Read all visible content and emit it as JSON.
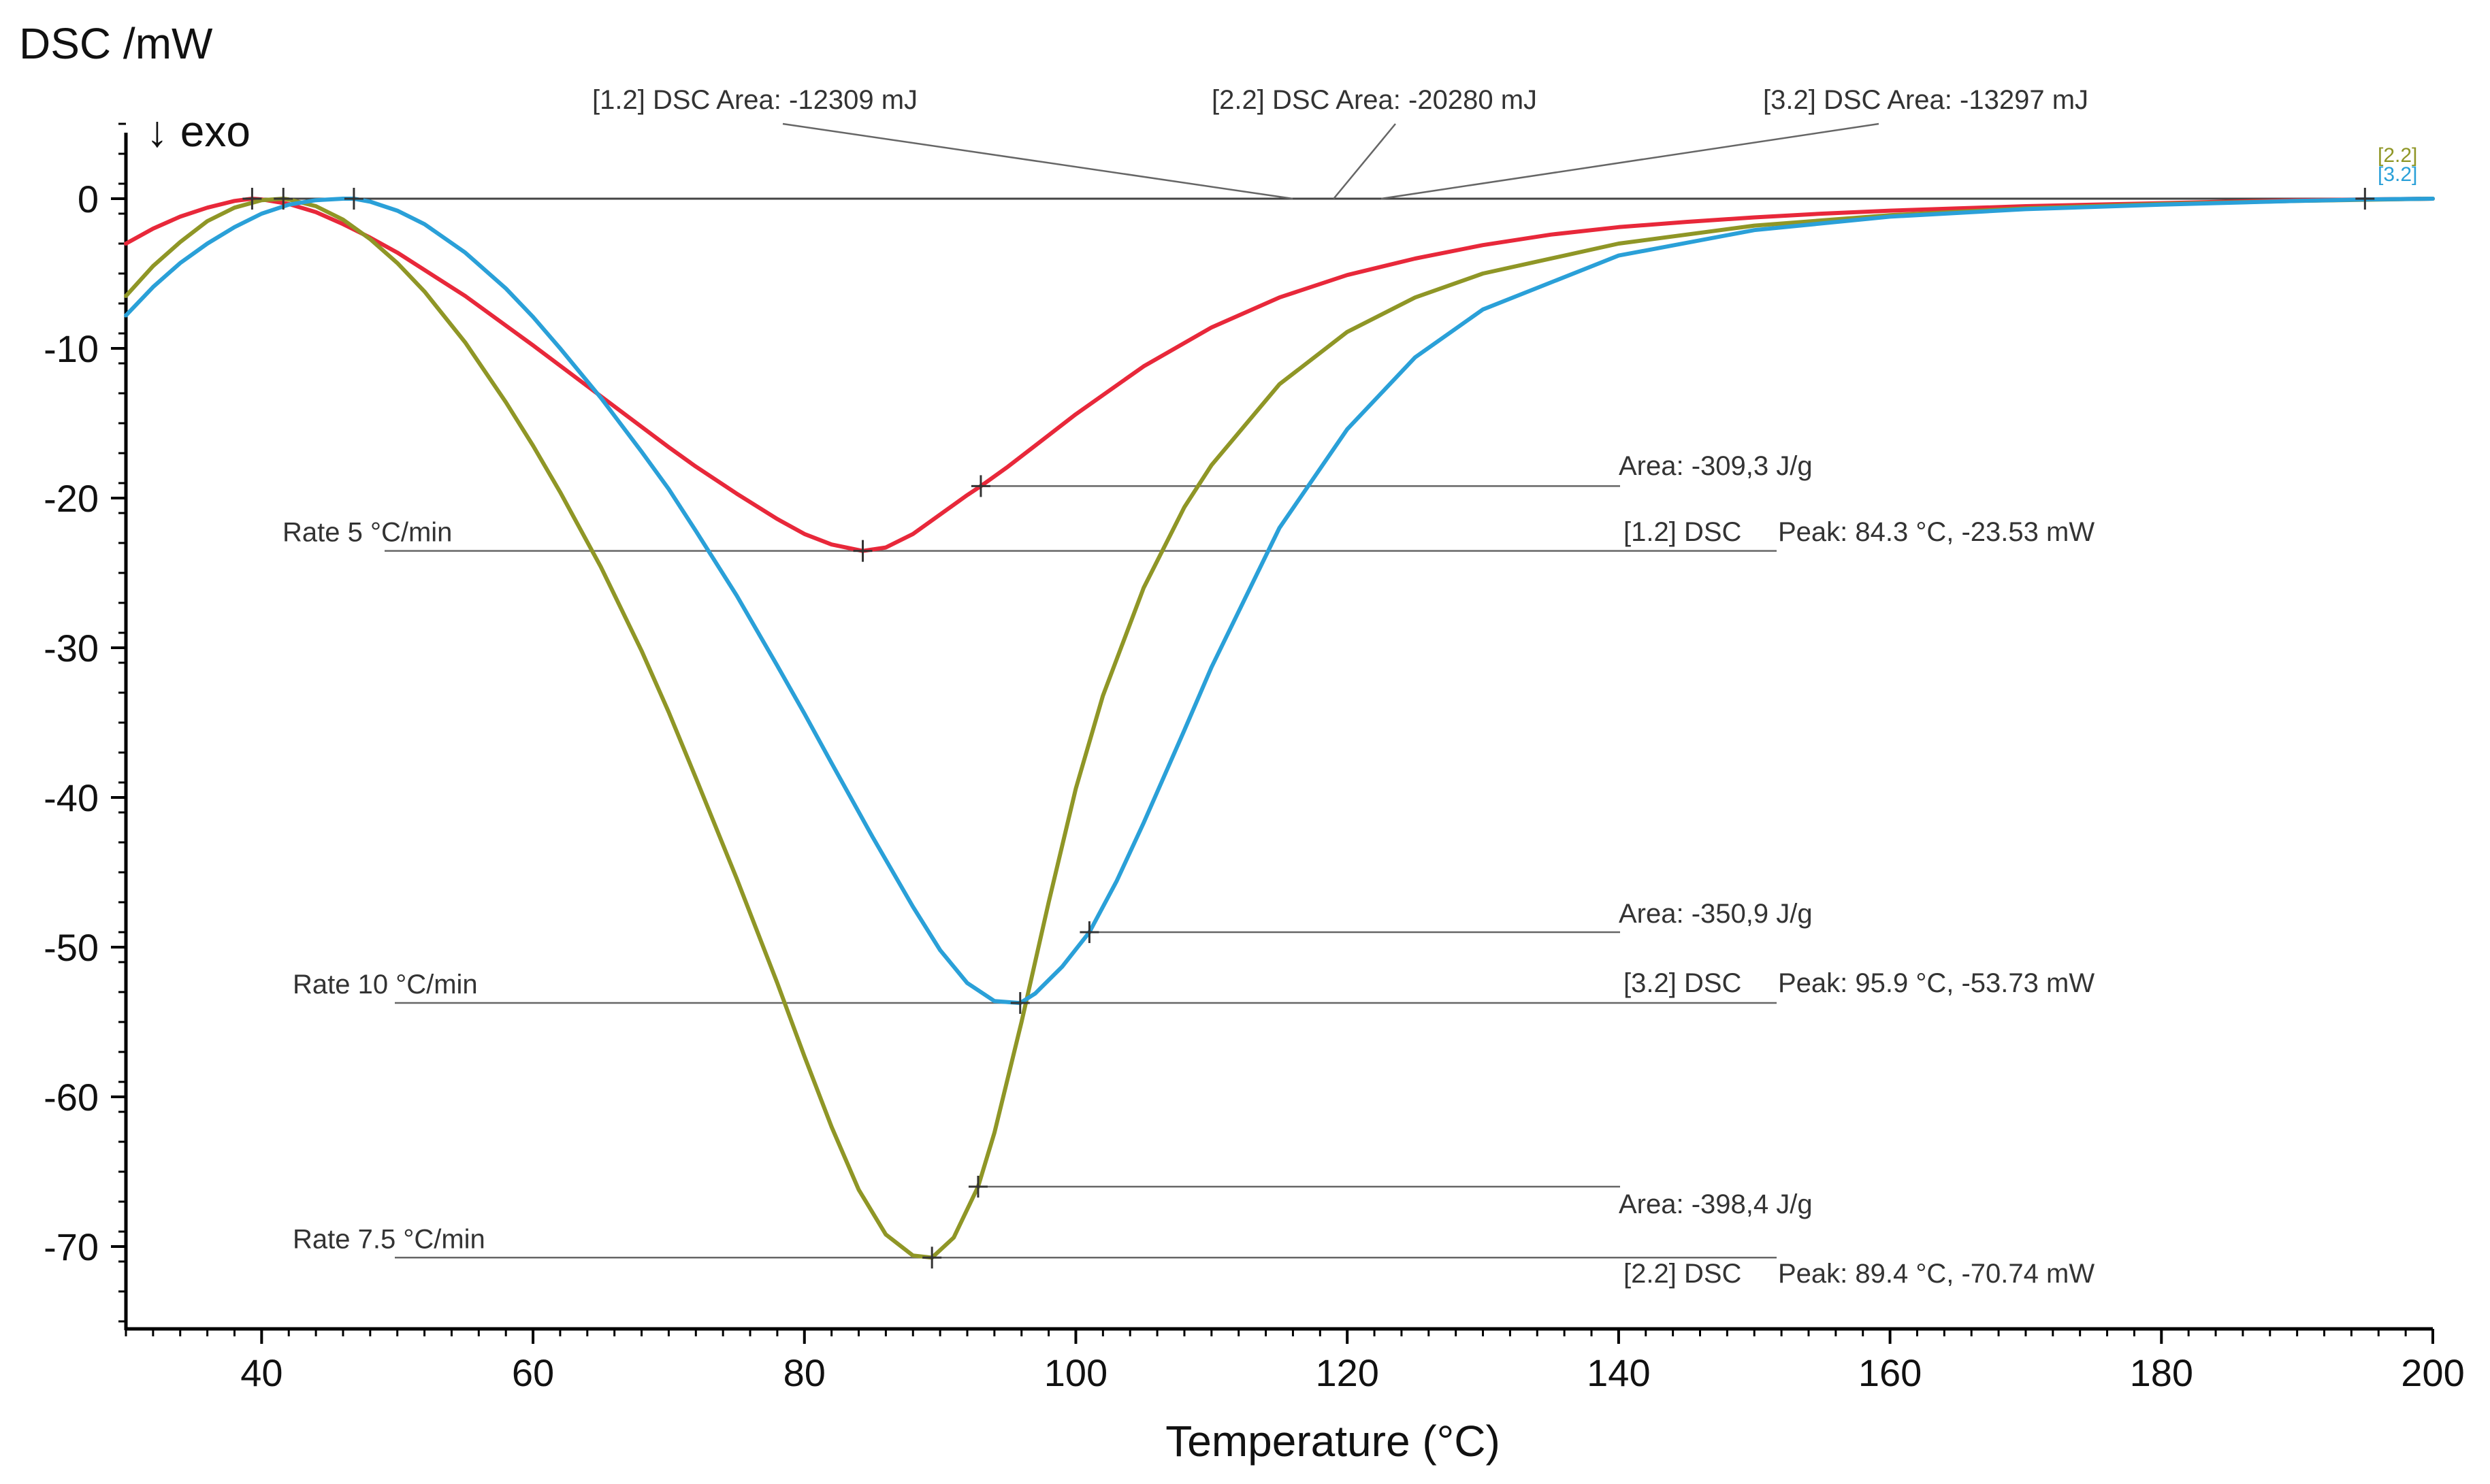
{
  "chart_data": {
    "type": "line",
    "title": "",
    "xlabel": "Temperature (°C)",
    "ylabel": "DSC /mW",
    "exo_label": "↓ exo",
    "xlim": [
      30,
      200
    ],
    "ylim": [
      -75,
      5
    ],
    "xticks": [
      40,
      60,
      80,
      100,
      120,
      140,
      160,
      180,
      200
    ],
    "yticks": [
      0,
      -10,
      -20,
      -30,
      -40,
      -50,
      -60,
      -70
    ],
    "grid": false,
    "colors": {
      "rate_5": "#e8283a",
      "rate_7_5": "#8f9626",
      "rate_10": "#2aa0d8",
      "baseline": "#444444",
      "annotation": "#666666"
    },
    "series": [
      {
        "name": "[1.2] DSC",
        "rate_label": "Rate 5  °C/min",
        "color": "#e8283a",
        "tag": "",
        "peak": {
          "x": 84.3,
          "y": -23.53
        },
        "partial_marker": {
          "x": 93.0,
          "y": -19.2
        },
        "start_marker": {
          "x": 39.3,
          "y": 0
        },
        "area_label": "Area: -309,3 J/g",
        "peak_label": "Peak: 84.3 °C, -23.53 mW",
        "series_label": "[1.2] DSC",
        "total_area_label": "[1.2] DSC Area: -12309 mJ",
        "x": [
          30,
          32,
          34,
          36,
          38,
          39.3,
          40,
          42,
          44,
          46,
          48,
          50,
          55,
          60,
          65,
          70,
          72,
          75,
          78,
          80,
          82,
          84.3,
          86,
          88,
          90,
          92,
          93,
          95,
          98,
          100,
          105,
          110,
          115,
          120,
          125,
          130,
          135,
          140,
          145,
          150,
          155,
          160,
          165,
          170,
          175,
          180,
          185,
          190,
          195,
          200
        ],
        "y": [
          -3.0,
          -2.0,
          -1.2,
          -0.6,
          -0.15,
          0,
          -0.05,
          -0.35,
          -0.9,
          -1.7,
          -2.6,
          -3.6,
          -6.5,
          -9.8,
          -13.2,
          -16.6,
          -17.9,
          -19.7,
          -21.4,
          -22.4,
          -23.1,
          -23.53,
          -23.3,
          -22.4,
          -21.1,
          -19.8,
          -19.2,
          -17.9,
          -15.8,
          -14.4,
          -11.2,
          -8.6,
          -6.6,
          -5.1,
          -4.0,
          -3.1,
          -2.4,
          -1.9,
          -1.55,
          -1.25,
          -1.0,
          -0.8,
          -0.65,
          -0.5,
          -0.4,
          -0.3,
          -0.2,
          -0.1,
          -0.05,
          0
        ]
      },
      {
        "name": "[2.2] DSC",
        "rate_label": "Rate 7.5  °C/min",
        "color": "#8f9626",
        "tag": "[2.2]",
        "peak": {
          "x": 89.4,
          "y": -70.74
        },
        "partial_marker": {
          "x": 92.8,
          "y": -66.0
        },
        "start_marker": {
          "x": 41.6,
          "y": 0
        },
        "area_label": "Area: -398,4 J/g",
        "peak_label": "Peak: 89.4 °C, -70.74 mW",
        "series_label": "[2.2] DSC",
        "total_area_label": "[2.2] DSC Area: -20280 mJ",
        "x": [
          30,
          32,
          34,
          36,
          38,
          40,
          41.6,
          42,
          44,
          46,
          48,
          50,
          52,
          55,
          58,
          60,
          62,
          65,
          68,
          70,
          72,
          75,
          78,
          80,
          82,
          84,
          86,
          88,
          89.4,
          91,
          92.8,
          94,
          96,
          98,
          100,
          102,
          105,
          108,
          110,
          115,
          120,
          125,
          130,
          140,
          150,
          160,
          170,
          180,
          190,
          200
        ],
        "y": [
          -6.5,
          -4.5,
          -2.9,
          -1.5,
          -0.6,
          -0.1,
          0,
          -0.05,
          -0.5,
          -1.4,
          -2.7,
          -4.3,
          -6.2,
          -9.6,
          -13.6,
          -16.5,
          -19.6,
          -24.6,
          -30.2,
          -34.3,
          -38.7,
          -45.4,
          -52.4,
          -57.3,
          -62.0,
          -66.2,
          -69.2,
          -70.6,
          -70.74,
          -69.4,
          -66.0,
          -62.4,
          -55.0,
          -47.0,
          -39.4,
          -33.2,
          -26.0,
          -20.6,
          -17.8,
          -12.4,
          -8.9,
          -6.6,
          -5.0,
          -3.0,
          -1.8,
          -1.1,
          -0.65,
          -0.35,
          -0.15,
          0
        ]
      },
      {
        "name": "[3.2] DSC",
        "rate_label": "Rate 10  °C/min",
        "color": "#2aa0d8",
        "tag": "[3.2]",
        "peak": {
          "x": 95.9,
          "y": -53.73
        },
        "partial_marker": {
          "x": 101.0,
          "y": -49.0
        },
        "start_marker": {
          "x": 46.8,
          "y": 0
        },
        "area_label": "Area: -350,9 J/g",
        "peak_label": "Peak: 95.9 °C, -53.73 mW",
        "series_label": "[3.2] DSC",
        "total_area_label": "[3.2] DSC Area: -13297 mJ",
        "x": [
          30,
          32,
          34,
          36,
          38,
          40,
          42,
          44,
          46,
          46.8,
          48,
          50,
          52,
          55,
          58,
          60,
          62,
          65,
          68,
          70,
          72,
          75,
          78,
          80,
          82,
          85,
          88,
          90,
          92,
          94,
          95.9,
          97,
          99,
          101,
          103,
          105,
          108,
          110,
          115,
          120,
          125,
          130,
          140,
          150,
          160,
          170,
          180,
          190,
          195,
          200
        ],
        "y": [
          -7.8,
          -5.9,
          -4.3,
          -3.0,
          -1.9,
          -1.0,
          -0.4,
          -0.1,
          0,
          0,
          -0.2,
          -0.8,
          -1.7,
          -3.6,
          -6.0,
          -7.9,
          -10.0,
          -13.3,
          -16.9,
          -19.4,
          -22.2,
          -26.5,
          -31.2,
          -34.4,
          -37.7,
          -42.6,
          -47.3,
          -50.2,
          -52.4,
          -53.6,
          -53.73,
          -53.1,
          -51.3,
          -49.0,
          -45.6,
          -41.7,
          -35.5,
          -31.3,
          -22.0,
          -15.4,
          -10.6,
          -7.4,
          -3.8,
          -2.1,
          -1.2,
          -0.7,
          -0.4,
          -0.15,
          -0.05,
          0
        ]
      }
    ],
    "baseline_end_x": 195
  }
}
